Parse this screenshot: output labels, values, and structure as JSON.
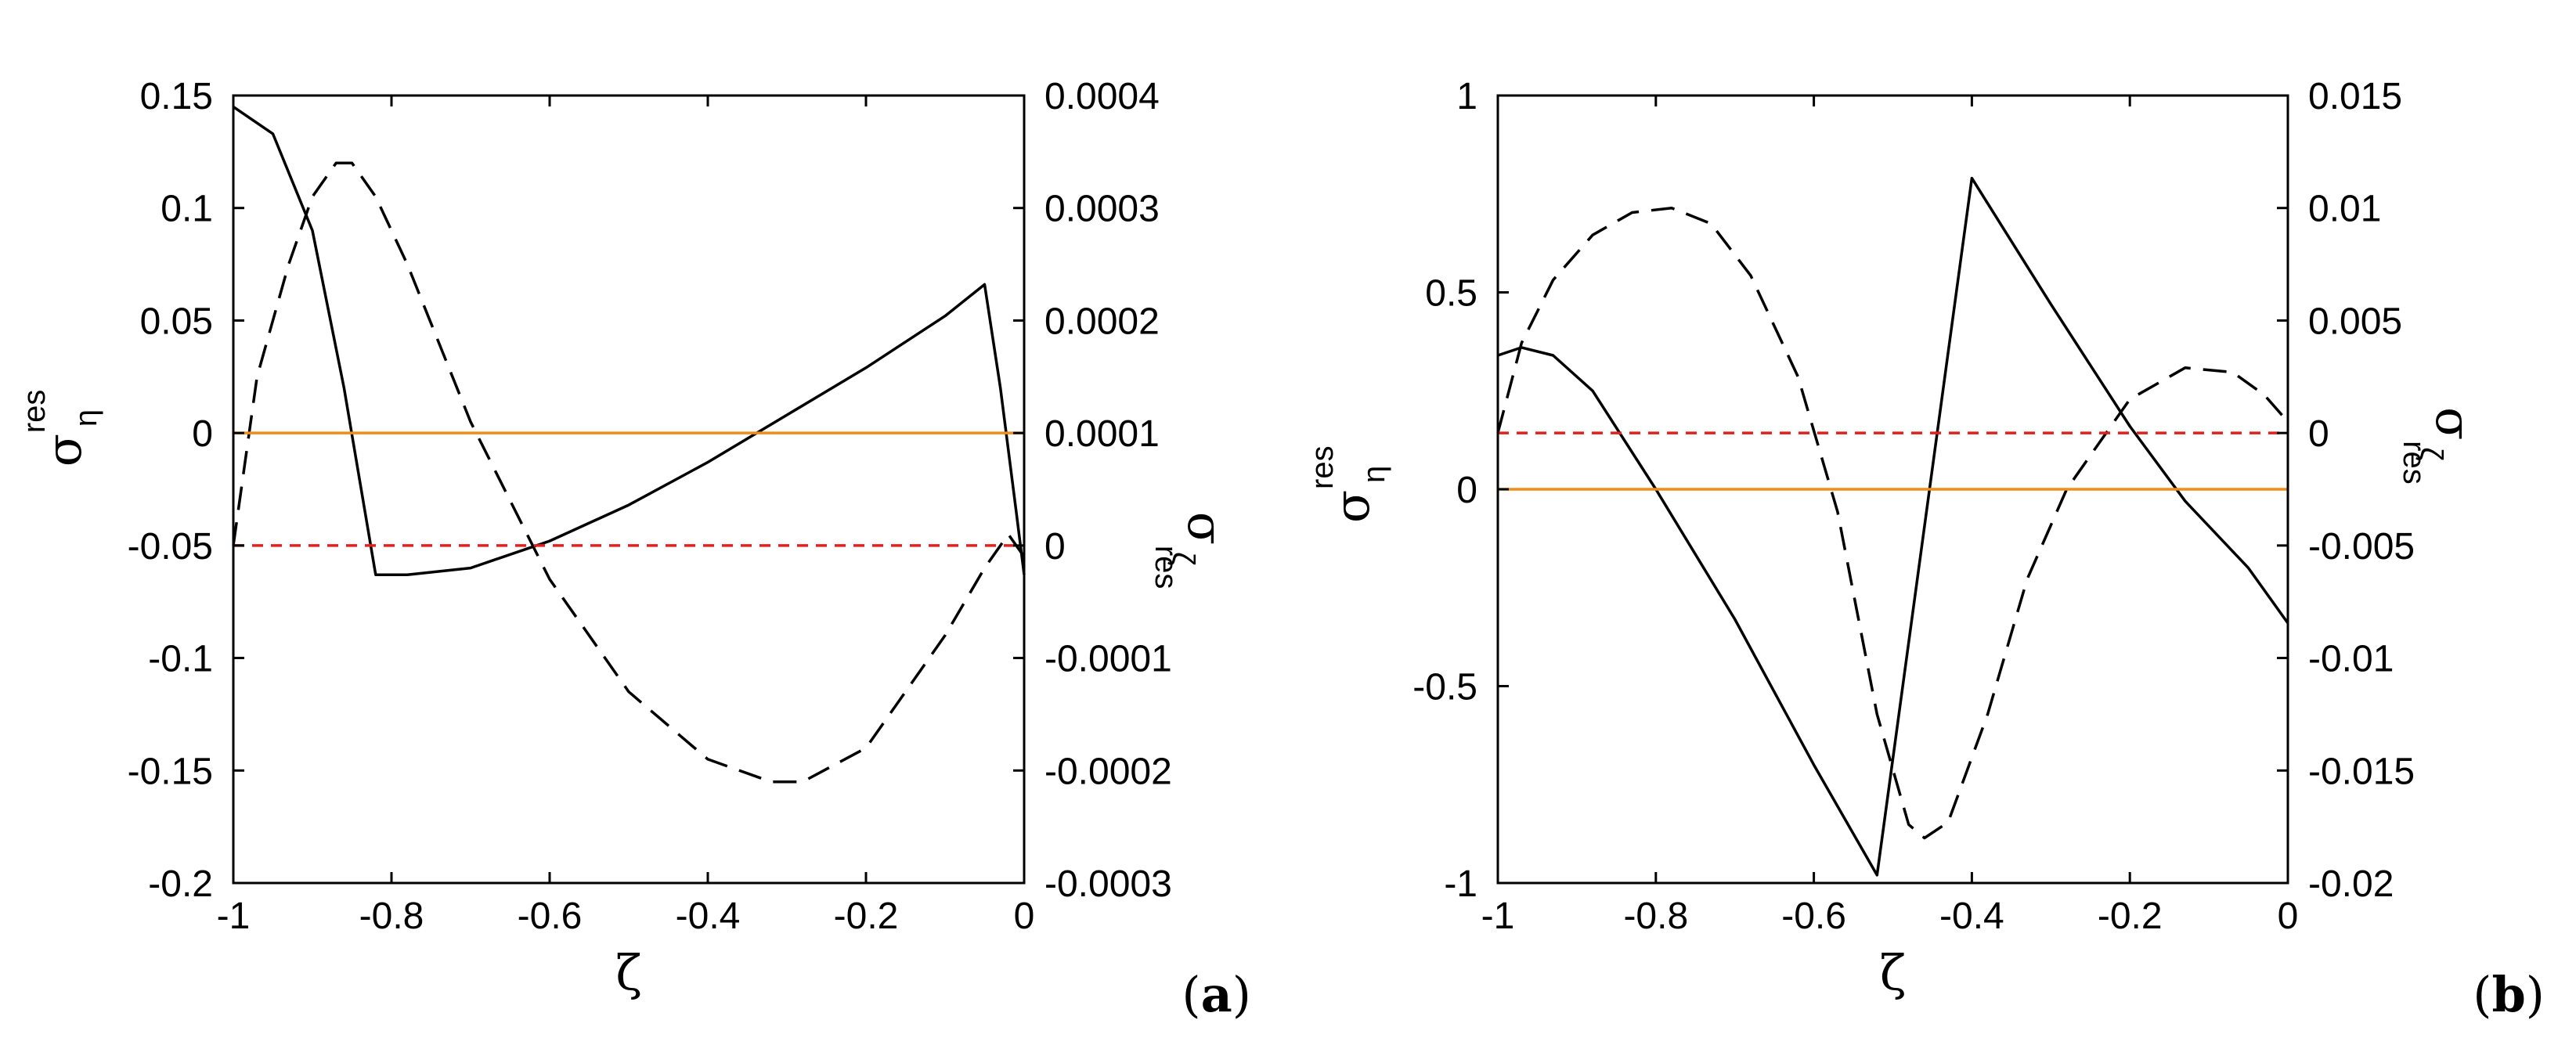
{
  "colors": {
    "solid": "#000000",
    "dashed": "#000000",
    "orange": "#f08c1c",
    "red": "#e32020"
  },
  "chart_data": [
    {
      "type": "line",
      "panel_label": "a",
      "xlabel": "ζ",
      "ylabel_left": {
        "symbol": "σ",
        "sub": "η",
        "sup": "res"
      },
      "ylabel_right": {
        "symbol": "σ",
        "sub": "ζ",
        "sup": "res"
      },
      "xlim": [
        -1,
        0
      ],
      "ylim_left": [
        -0.2,
        0.15
      ],
      "ylim_right": [
        -0.0003,
        0.0004
      ],
      "x_ticks": [
        "-1",
        "-0.8",
        "-0.6",
        "-0.4",
        "-0.2",
        "0"
      ],
      "x_tick_values": [
        -1,
        -0.8,
        -0.6,
        -0.4,
        -0.2,
        0
      ],
      "y_ticks_left": [
        "-0.2",
        "-0.15",
        "-0.1",
        "-0.05",
        "0",
        "0.05",
        "0.1",
        "0.15"
      ],
      "y_tick_values_left": [
        -0.2,
        -0.15,
        -0.1,
        -0.05,
        0,
        0.05,
        0.1,
        0.15
      ],
      "y_ticks_right": [
        "-0.0003",
        "-0.0002",
        "-0.0001",
        "0",
        "0.0001",
        "0.0002",
        "0.0003",
        "0.0004"
      ],
      "y_tick_values_right": [
        -0.0003,
        -0.0002,
        -0.0001,
        0,
        0.0001,
        0.0002,
        0.0003,
        0.0004
      ],
      "series": [
        {
          "name": "sigma_eta_res",
          "axis": "left",
          "style": "solid",
          "x": [
            -1,
            -0.95,
            -0.9,
            -0.86,
            -0.82,
            -0.78,
            -0.7,
            -0.6,
            -0.5,
            -0.4,
            -0.3,
            -0.2,
            -0.1,
            -0.05,
            -0.03,
            -0.01,
            0
          ],
          "y": [
            0.145,
            0.133,
            0.09,
            0.02,
            -0.063,
            -0.063,
            -0.06,
            -0.048,
            -0.032,
            -0.013,
            0.008,
            0.029,
            0.052,
            0.066,
            0.02,
            -0.035,
            -0.063
          ]
        },
        {
          "name": "sigma_zeta_res",
          "axis": "right",
          "style": "dashed",
          "x": [
            -1,
            -0.97,
            -0.93,
            -0.9,
            -0.87,
            -0.85,
            -0.82,
            -0.78,
            -0.7,
            -0.6,
            -0.5,
            -0.4,
            -0.32,
            -0.28,
            -0.2,
            -0.1,
            -0.05,
            -0.02,
            0
          ],
          "y": [
            0.0,
            0.00015,
            0.00025,
            0.00031,
            0.00034,
            0.00034,
            0.00031,
            0.00025,
            0.00011,
            -3e-05,
            -0.00013,
            -0.00019,
            -0.00021,
            -0.00021,
            -0.00018,
            -8e-05,
            -2e-05,
            1e-05,
            -1e-05
          ]
        },
        {
          "name": "zero_sigma_eta",
          "axis": "left",
          "style": "orange",
          "x": [
            -1,
            0
          ],
          "y": [
            0,
            0
          ]
        },
        {
          "name": "zero_sigma_zeta",
          "axis": "right",
          "style": "red-dashed",
          "x": [
            -1,
            0
          ],
          "y": [
            0,
            0
          ]
        }
      ]
    },
    {
      "type": "line",
      "panel_label": "b",
      "xlabel": "ζ",
      "ylabel_left": {
        "symbol": "σ",
        "sub": "η",
        "sup": "res"
      },
      "ylabel_right": {
        "symbol": "σ",
        "sub": "ζ",
        "sup": "res"
      },
      "xlim": [
        -1,
        0
      ],
      "ylim_left": [
        -1,
        1
      ],
      "ylim_right": [
        -0.02,
        0.015
      ],
      "x_ticks": [
        "-1",
        "-0.8",
        "-0.6",
        "-0.4",
        "-0.2",
        "0"
      ],
      "x_tick_values": [
        -1,
        -0.8,
        -0.6,
        -0.4,
        -0.2,
        0
      ],
      "y_ticks_left": [
        "-1",
        "-0.5",
        "0",
        "0.5",
        "1"
      ],
      "y_tick_values_left": [
        -1,
        -0.5,
        0,
        0.5,
        1
      ],
      "y_ticks_right": [
        "-0.02",
        "-0.015",
        "-0.01",
        "-0.005",
        "0",
        "0.005",
        "0.01",
        "0.015"
      ],
      "y_tick_values_right": [
        -0.02,
        -0.015,
        -0.01,
        -0.005,
        0,
        0.005,
        0.01,
        0.015
      ],
      "series": [
        {
          "name": "sigma_eta_res",
          "axis": "left",
          "style": "solid",
          "x": [
            -1,
            -0.97,
            -0.93,
            -0.88,
            -0.8,
            -0.7,
            -0.6,
            -0.52,
            -0.4,
            -0.3,
            -0.2,
            -0.13,
            -0.05,
            0
          ],
          "y": [
            0.34,
            0.36,
            0.34,
            0.25,
            0.0,
            -0.33,
            -0.7,
            -0.98,
            0.79,
            0.47,
            0.16,
            -0.03,
            -0.2,
            -0.34
          ]
        },
        {
          "name": "sigma_zeta_res",
          "axis": "right",
          "style": "dashed",
          "x": [
            -1,
            -0.97,
            -0.93,
            -0.88,
            -0.83,
            -0.78,
            -0.73,
            -0.68,
            -0.62,
            -0.57,
            -0.52,
            -0.48,
            -0.46,
            -0.43,
            -0.38,
            -0.33,
            -0.28,
            -0.2,
            -0.13,
            -0.07,
            -0.03,
            0
          ],
          "y": [
            0.0,
            0.004,
            0.0068,
            0.0088,
            0.0098,
            0.01,
            0.0093,
            0.007,
            0.0025,
            -0.0035,
            -0.0125,
            -0.0174,
            -0.018,
            -0.0173,
            -0.0125,
            -0.0065,
            -0.0025,
            0.0015,
            0.0029,
            0.0027,
            0.0017,
            0.0005
          ]
        },
        {
          "name": "zero_sigma_eta",
          "axis": "left",
          "style": "orange",
          "x": [
            -1,
            0
          ],
          "y": [
            0,
            0
          ]
        },
        {
          "name": "zero_sigma_zeta",
          "axis": "right",
          "style": "red-dashed",
          "x": [
            -1,
            0
          ],
          "y": [
            0,
            0
          ]
        }
      ]
    }
  ]
}
